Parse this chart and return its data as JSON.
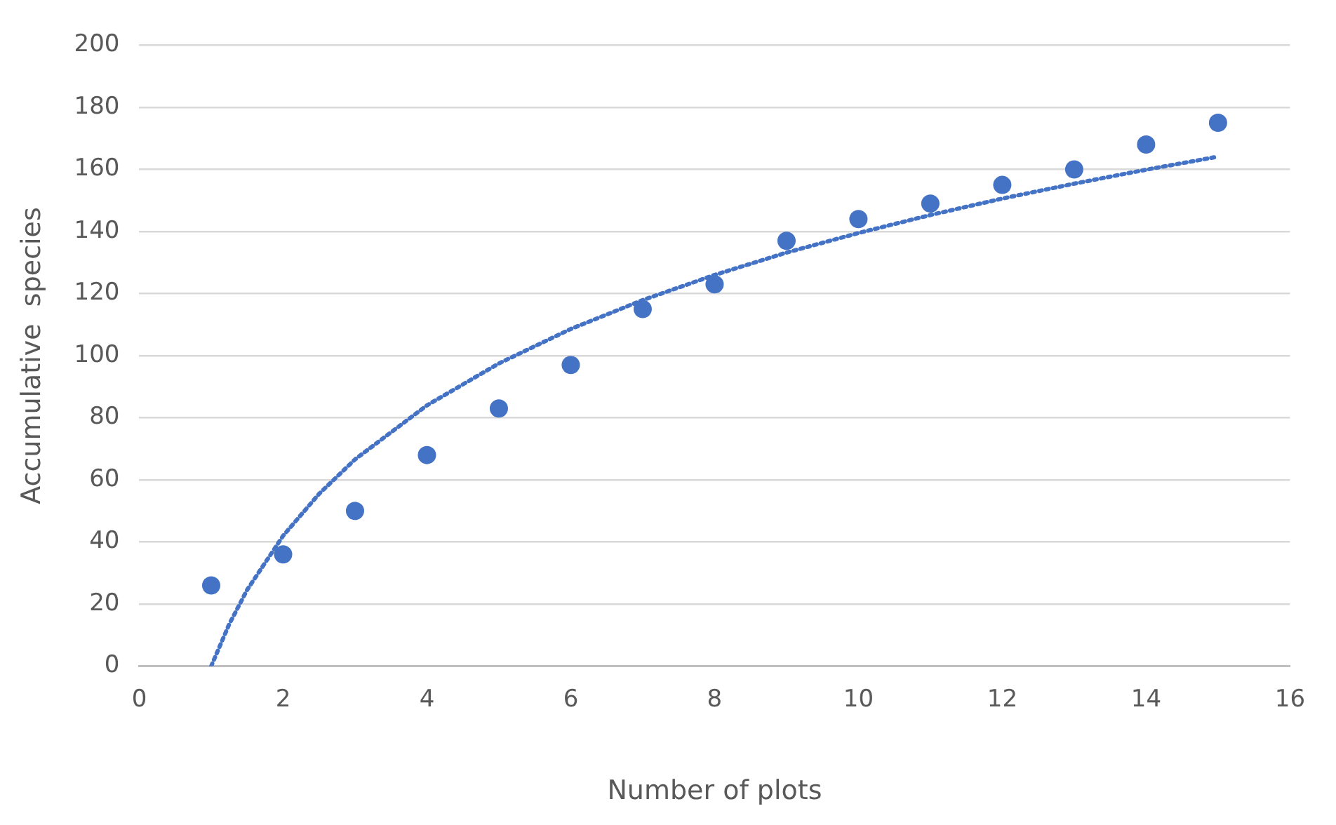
{
  "chart_data": {
    "type": "scatter",
    "xlabel": "Number of plots",
    "ylabel": "Accumulative  species",
    "xlim": [
      0,
      16
    ],
    "xticks": [
      0,
      2,
      4,
      6,
      8,
      10,
      12,
      14,
      16
    ],
    "ylim": [
      0,
      200
    ],
    "yticks": [
      0,
      20,
      40,
      60,
      80,
      100,
      120,
      140,
      160,
      180,
      200
    ],
    "grid": "y",
    "legend": false,
    "series": [
      {
        "type": "scatter",
        "color": "#4472c4",
        "marker": "circle",
        "x": [
          1,
          2,
          3,
          4,
          5,
          6,
          7,
          8,
          9,
          10,
          11,
          12,
          13,
          14,
          15
        ],
        "values": [
          26,
          36,
          50,
          68,
          83,
          97,
          115,
          123,
          137,
          144,
          149,
          155,
          160,
          168,
          175
        ]
      },
      {
        "type": "line",
        "color": "#4472c4",
        "marker": "none",
        "line_style": "dotted",
        "x": [
          1,
          1.25,
          1.5,
          2,
          2.5,
          3,
          4,
          5,
          6,
          7,
          8,
          9,
          10,
          11,
          12,
          13,
          14,
          15
        ],
        "values": [
          0,
          13.5,
          24.6,
          42,
          55.5,
          66.6,
          84,
          97.5,
          108.6,
          117.9,
          126,
          133.2,
          139.5,
          145.3,
          150.6,
          155.4,
          159.9,
          164.1
        ]
      }
    ]
  }
}
